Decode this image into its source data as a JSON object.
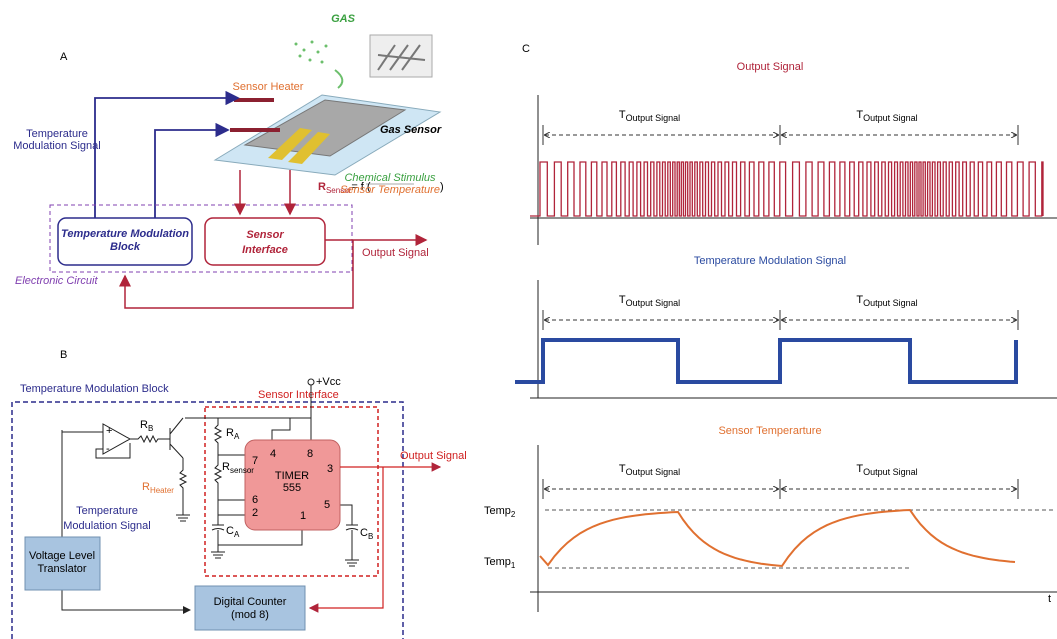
{
  "panel_a": {
    "label": "A",
    "gas": "GAS",
    "sensor_heater": "Sensor Heater",
    "gas_sensor": "Gas Sensor",
    "modulation_signal": [
      "Temperature",
      "Modulation Signal"
    ],
    "modulation_block": [
      "Temperature Modulation",
      "Block"
    ],
    "sensor_interface": [
      "Sensor",
      "Interface"
    ],
    "output_signal": "Output Signal",
    "electronic_circuit": "Electronic Circuit",
    "formula": {
      "symbol": "R",
      "subscript": "Sensor",
      "equals": "= f (",
      "numerator": "Chemical Stimulus",
      "denominator": "Sensor Temperature",
      "close": ")"
    }
  },
  "panel_b": {
    "label": "B",
    "modulation_block": "Temperature  Modulation Block",
    "sensor_interface": "Sensor Interface",
    "vcc": "+Vcc",
    "timer": [
      "TIMER",
      "555"
    ],
    "pins": [
      "4",
      "8",
      "7",
      "3",
      "6",
      "2",
      "5",
      "1"
    ],
    "components": {
      "rb": {
        "symbol": "R",
        "subscript": "B"
      },
      "ra": {
        "symbol": "R",
        "subscript": "A"
      },
      "rsensor": {
        "symbol": "R",
        "subscript": "sensor"
      },
      "rheater": {
        "symbol": "R",
        "subscript": "Heater"
      },
      "ca": {
        "symbol": "C",
        "subscript": "A"
      },
      "cb": {
        "symbol": "C",
        "subscript": "B"
      }
    },
    "output_signal": "Output Signal",
    "modulation_signal": [
      "Temperature",
      "Modulation Signal"
    ],
    "translator": [
      "Voltage Level",
      "Translator"
    ],
    "counter": [
      "Digital Counter",
      "(mod 8)"
    ]
  },
  "panel_c": {
    "label": "C",
    "axis_label": "t",
    "plots": [
      {
        "title": "Output Signal",
        "period_labels": [
          {
            "symbol": "T",
            "subscript": "Output Signal"
          },
          {
            "symbol": "T",
            "subscript": "Output Signal"
          }
        ]
      },
      {
        "title": "Temperature Modulation Signal",
        "period_labels": [
          {
            "symbol": "T",
            "subscript": "Output Signal"
          },
          {
            "symbol": "T",
            "subscript": "Output Signal"
          }
        ]
      },
      {
        "title": "Sensor Temperarture",
        "period_labels": [
          {
            "symbol": "T",
            "subscript": "Output Signal"
          },
          {
            "symbol": "T",
            "subscript": "Output Signal"
          }
        ]
      }
    ],
    "levels": [
      {
        "symbol": "Temp",
        "subscript": "2"
      },
      {
        "symbol": "Temp",
        "subscript": "1"
      }
    ]
  }
}
